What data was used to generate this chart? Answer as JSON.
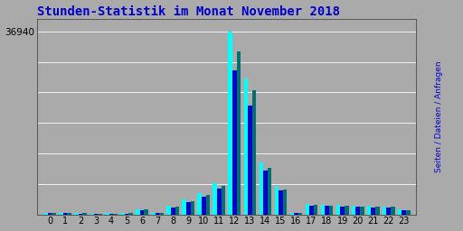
{
  "title": "Stunden-Statistik im Monat November 2018",
  "title_color": "#0000cc",
  "title_fontsize": 10,
  "hours": [
    0,
    1,
    2,
    3,
    4,
    5,
    6,
    7,
    8,
    9,
    10,
    11,
    12,
    13,
    14,
    15,
    16,
    17,
    18,
    19,
    20,
    21,
    22,
    23
  ],
  "seiten": [
    350,
    280,
    250,
    200,
    230,
    240,
    1100,
    380,
    1750,
    3000,
    4300,
    6300,
    36940,
    27500,
    10500,
    5500,
    360,
    2100,
    2000,
    1900,
    1800,
    1700,
    1650,
    950
  ],
  "dateien": [
    290,
    230,
    200,
    160,
    185,
    200,
    800,
    310,
    1450,
    2450,
    3550,
    5200,
    29000,
    22000,
    8800,
    4800,
    290,
    1800,
    1700,
    1600,
    1520,
    1430,
    1380,
    800
  ],
  "anfragen": [
    320,
    260,
    225,
    180,
    210,
    220,
    950,
    345,
    1600,
    2750,
    3950,
    5750,
    33000,
    25000,
    9500,
    5100,
    325,
    1950,
    1850,
    1750,
    1660,
    1570,
    1510,
    870
  ],
  "seiten_color": "#00ffff",
  "dateien_color": "#0000cc",
  "anfragen_color": "#007070",
  "bg_color": "#aaaaaa",
  "ytick_label": "36940",
  "ylim_max": 36940,
  "bar_width": 0.27,
  "figsize": [
    5.12,
    2.56
  ],
  "dpi": 100,
  "right_label_seiten_color": "#00aaaa",
  "right_label_dateien_color": "#0000cc",
  "right_label_anfragen_color": "#007070"
}
